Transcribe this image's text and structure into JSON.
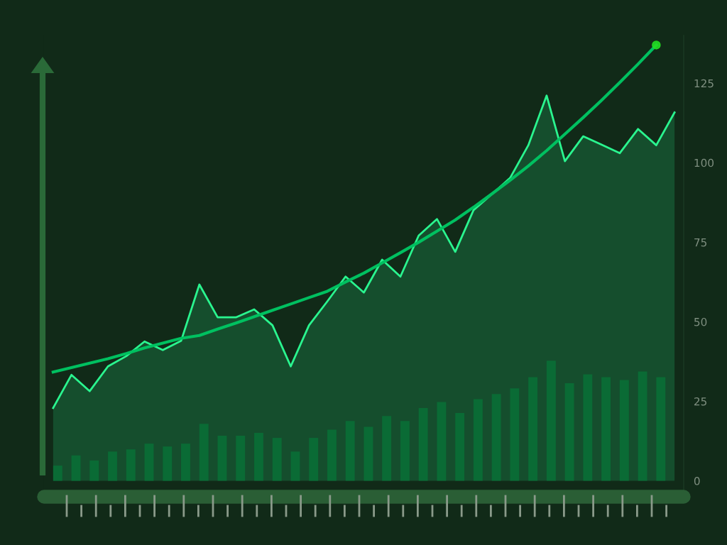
{
  "chart_data": {
    "type": "area",
    "categories": [
      null,
      null,
      null,
      null,
      null,
      null,
      null,
      null,
      null,
      null,
      null,
      null,
      null,
      null,
      null,
      null,
      null,
      null,
      null,
      null,
      null,
      null,
      null,
      null,
      null,
      null,
      null,
      null,
      null,
      null,
      null,
      null,
      null,
      null,
      null
    ],
    "series": [
      {
        "type": "bar",
        "color": "#0a6b35",
        "values": [
          4.8,
          8.0,
          6.4,
          9.2,
          9.9,
          11.7,
          10.8,
          11.7,
          17.9,
          14.2,
          14.2,
          15.1,
          13.5,
          9.2,
          13.5,
          16.1,
          18.8,
          17.0,
          20.4,
          18.8,
          22.9,
          24.8,
          21.3,
          25.7,
          27.3,
          29.1,
          32.6,
          37.8,
          30.7,
          33.5,
          32.6,
          31.7,
          34.4,
          32.6,
          null
        ]
      },
      {
        "color": "#2af58f",
        "values": [
          22.9,
          33.3,
          28.2,
          36.0,
          39.2,
          43.8,
          41.1,
          44.0,
          61.7,
          51.4,
          51.4,
          53.9,
          48.9,
          36.0,
          48.9,
          56.4,
          64.2,
          59.2,
          69.5,
          64.2,
          77.1,
          82.3,
          72.0,
          85.1,
          90.1,
          95.2,
          105.5,
          121.1,
          100.5,
          108.3,
          105.7,
          103.0,
          110.6,
          105.5,
          115.8
        ]
      },
      {
        "type": "line",
        "color": "#00c060",
        "values": [
          34.2,
          35.6,
          37.0,
          38.4,
          40.0,
          41.8,
          43.3,
          44.8,
          45.7,
          47.7,
          49.6,
          51.6,
          53.6,
          55.6,
          57.6,
          59.6,
          62.5,
          65.3,
          68.5,
          71.7,
          75.0,
          78.5,
          82.0,
          86.0,
          90.2,
          94.5,
          99.0,
          103.8,
          109.0,
          114.2,
          119.6,
          125.2,
          131.0,
          137.0,
          null
        ]
      }
    ],
    "ylim": [
      -5,
      140
    ],
    "yticks": [
      0,
      25,
      50,
      75,
      100,
      125
    ],
    "tick_labels": "y",
    "grid": false,
    "legend": false
  }
}
